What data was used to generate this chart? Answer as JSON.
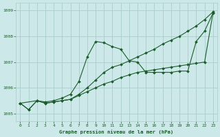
{
  "title": "Graphe pression niveau de la mer (hPa)",
  "bg_color": "#cce8e8",
  "grid_color": "#aacccc",
  "line_color": "#1a5c2a",
  "xlim": [
    -0.5,
    23.5
  ],
  "ylim": [
    1004.7,
    1009.3
  ],
  "yticks": [
    1005,
    1006,
    1007,
    1008,
    1009
  ],
  "xticks": [
    0,
    1,
    2,
    3,
    4,
    5,
    6,
    7,
    8,
    9,
    10,
    11,
    12,
    13,
    14,
    15,
    16,
    17,
    18,
    19,
    20,
    21,
    22,
    23
  ],
  "series1": {
    "x": [
      0,
      1,
      2,
      3,
      4,
      5,
      6,
      7,
      8,
      9,
      10,
      11,
      12,
      13,
      14,
      15,
      16,
      17,
      18,
      19,
      20,
      21,
      22,
      23
    ],
    "y": [
      1005.4,
      1005.15,
      1005.5,
      1005.45,
      1005.5,
      1005.6,
      1005.75,
      1006.25,
      1007.2,
      1007.8,
      1007.75,
      1007.6,
      1007.5,
      1007.05,
      1007.0,
      1006.6,
      1006.6,
      1006.6,
      1006.6,
      1006.65,
      1006.65,
      1007.8,
      1008.2,
      1008.9
    ]
  },
  "series2": {
    "x": [
      0,
      2,
      3,
      4,
      5,
      6,
      7,
      8,
      9,
      10,
      11,
      12,
      13,
      14,
      15,
      16,
      17,
      18,
      19,
      20,
      21,
      22,
      23
    ],
    "y": [
      1005.4,
      1005.5,
      1005.4,
      1005.45,
      1005.5,
      1005.55,
      1005.75,
      1006.0,
      1006.3,
      1006.6,
      1006.8,
      1006.9,
      1007.05,
      1007.2,
      1007.35,
      1007.5,
      1007.7,
      1007.85,
      1008.0,
      1008.2,
      1008.4,
      1008.65,
      1008.95
    ]
  },
  "series3": {
    "x": [
      0,
      1,
      2,
      3,
      4,
      5,
      6,
      7,
      8,
      9,
      10,
      11,
      12,
      13,
      14,
      15,
      16,
      17,
      18,
      19,
      20,
      21,
      22,
      23
    ],
    "y": [
      1005.4,
      1005.15,
      1005.5,
      1005.4,
      1005.45,
      1005.5,
      1005.55,
      1005.7,
      1005.85,
      1006.0,
      1006.15,
      1006.25,
      1006.4,
      1006.5,
      1006.6,
      1006.65,
      1006.7,
      1006.75,
      1006.8,
      1006.85,
      1006.9,
      1006.95,
      1007.0,
      1008.9
    ]
  }
}
